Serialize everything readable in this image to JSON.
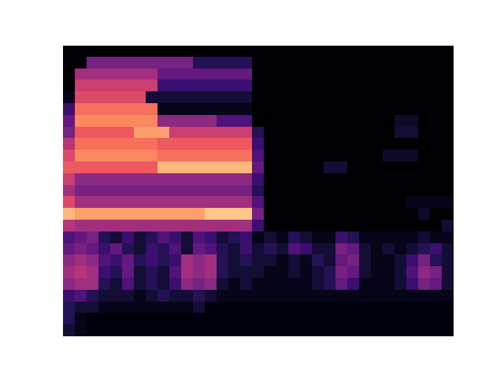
{
  "chart_data": {
    "type": "heatmap",
    "tick_labels": false,
    "color_range": [
      0,
      100
    ],
    "cells": [
      [
        0,
        0,
        0,
        0,
        0,
        0,
        0,
        0,
        0,
        0,
        0,
        0,
        0,
        0,
        0,
        0,
        0,
        0,
        0,
        0,
        0,
        0,
        0,
        0,
        0,
        0,
        0,
        0,
        0,
        0,
        0,
        0,
        0
      ],
      [
        0,
        0,
        35,
        35,
        35,
        35,
        35,
        35,
        35,
        35,
        35,
        15,
        15,
        15,
        15,
        15,
        0,
        0,
        0,
        0,
        0,
        0,
        0,
        0,
        0,
        0,
        0,
        0,
        0,
        0,
        0,
        0,
        0
      ],
      [
        0,
        45,
        45,
        45,
        45,
        45,
        45,
        45,
        30,
        30,
        30,
        30,
        30,
        30,
        30,
        30,
        0,
        0,
        0,
        0,
        0,
        0,
        0,
        0,
        0,
        0,
        0,
        0,
        0,
        0,
        0,
        0,
        0
      ],
      [
        0,
        55,
        55,
        55,
        55,
        55,
        55,
        55,
        20,
        20,
        20,
        20,
        20,
        20,
        20,
        20,
        0,
        0,
        0,
        0,
        0,
        0,
        0,
        0,
        0,
        0,
        0,
        0,
        0,
        0,
        0,
        0,
        0
      ],
      [
        5,
        60,
        60,
        60,
        60,
        60,
        60,
        10,
        10,
        10,
        10,
        10,
        10,
        10,
        10,
        10,
        0,
        0,
        0,
        0,
        0,
        0,
        0,
        0,
        0,
        0,
        0,
        0,
        0,
        0,
        0,
        0,
        0
      ],
      [
        20,
        70,
        70,
        70,
        70,
        70,
        70,
        70,
        5,
        5,
        5,
        5,
        5,
        5,
        5,
        5,
        0,
        0,
        0,
        0,
        0,
        0,
        0,
        0,
        0,
        0,
        0,
        0,
        0,
        0,
        0,
        0,
        0
      ],
      [
        30,
        75,
        75,
        75,
        75,
        75,
        75,
        75,
        40,
        40,
        40,
        40,
        40,
        25,
        25,
        25,
        0,
        0,
        0,
        0,
        0,
        0,
        0,
        0,
        0,
        0,
        0,
        0,
        8,
        8,
        0,
        0,
        0
      ],
      [
        35,
        65,
        65,
        65,
        65,
        65,
        80,
        80,
        80,
        55,
        55,
        55,
        55,
        55,
        55,
        55,
        15,
        0,
        0,
        0,
        0,
        0,
        0,
        0,
        0,
        0,
        0,
        0,
        10,
        10,
        0,
        0,
        0
      ],
      [
        50,
        70,
        70,
        70,
        70,
        70,
        70,
        70,
        65,
        65,
        65,
        65,
        65,
        65,
        65,
        65,
        20,
        0,
        0,
        0,
        0,
        0,
        0,
        0,
        0,
        0,
        0,
        0,
        0,
        0,
        0,
        0,
        0
      ],
      [
        60,
        75,
        75,
        75,
        75,
        75,
        75,
        75,
        70,
        70,
        70,
        70,
        70,
        70,
        70,
        70,
        25,
        0,
        0,
        0,
        0,
        0,
        0,
        0,
        0,
        0,
        0,
        8,
        8,
        8,
        0,
        0,
        0
      ],
      [
        65,
        65,
        65,
        65,
        65,
        65,
        65,
        65,
        85,
        85,
        85,
        85,
        85,
        85,
        85,
        85,
        30,
        0,
        0,
        0,
        0,
        0,
        10,
        10,
        0,
        0,
        0,
        0,
        0,
        0,
        0,
        0,
        0
      ],
      [
        55,
        40,
        40,
        40,
        40,
        40,
        40,
        40,
        40,
        40,
        40,
        40,
        40,
        40,
        40,
        40,
        20,
        0,
        0,
        0,
        0,
        0,
        0,
        0,
        0,
        0,
        0,
        0,
        0,
        0,
        0,
        0,
        0
      ],
      [
        45,
        35,
        35,
        35,
        35,
        35,
        35,
        35,
        35,
        35,
        35,
        35,
        35,
        35,
        35,
        35,
        15,
        0,
        0,
        0,
        0,
        0,
        0,
        0,
        0,
        0,
        0,
        0,
        0,
        0,
        0,
        0,
        0
      ],
      [
        60,
        45,
        45,
        45,
        45,
        45,
        45,
        45,
        45,
        45,
        45,
        45,
        45,
        45,
        45,
        45,
        25,
        0,
        0,
        0,
        0,
        0,
        0,
        0,
        0,
        0,
        0,
        0,
        0,
        5,
        5,
        5,
        5
      ],
      [
        85,
        80,
        80,
        80,
        80,
        80,
        80,
        80,
        80,
        80,
        80,
        80,
        88,
        88,
        88,
        88,
        35,
        0,
        0,
        0,
        0,
        0,
        0,
        0,
        0,
        0,
        0,
        0,
        0,
        0,
        8,
        0,
        0
      ],
      [
        50,
        45,
        45,
        45,
        45,
        45,
        45,
        45,
        45,
        45,
        45,
        45,
        45,
        45,
        45,
        45,
        20,
        0,
        0,
        0,
        0,
        0,
        0,
        0,
        0,
        0,
        0,
        0,
        0,
        0,
        0,
        0,
        10
      ],
      [
        25,
        30,
        35,
        15,
        10,
        20,
        10,
        15,
        25,
        20,
        10,
        25,
        20,
        10,
        15,
        20,
        5,
        10,
        5,
        15,
        10,
        5,
        5,
        20,
        15,
        5,
        5,
        5,
        5,
        5,
        10,
        5,
        5
      ],
      [
        30,
        35,
        30,
        20,
        30,
        15,
        10,
        20,
        15,
        25,
        10,
        30,
        25,
        15,
        10,
        20,
        10,
        15,
        10,
        25,
        20,
        10,
        10,
        35,
        30,
        10,
        5,
        10,
        5,
        10,
        15,
        20,
        10
      ],
      [
        40,
        45,
        40,
        25,
        20,
        30,
        15,
        20,
        15,
        20,
        45,
        40,
        45,
        15,
        10,
        15,
        10,
        10,
        5,
        10,
        5,
        15,
        10,
        30,
        35,
        10,
        5,
        5,
        10,
        20,
        35,
        15,
        10
      ],
      [
        45,
        50,
        45,
        20,
        15,
        30,
        10,
        15,
        10,
        25,
        45,
        40,
        45,
        15,
        10,
        10,
        10,
        5,
        5,
        10,
        5,
        10,
        15,
        35,
        30,
        10,
        5,
        5,
        10,
        25,
        40,
        35,
        10
      ],
      [
        40,
        45,
        45,
        15,
        10,
        25,
        10,
        15,
        10,
        20,
        40,
        35,
        40,
        10,
        5,
        10,
        5,
        5,
        5,
        5,
        5,
        10,
        15,
        30,
        20,
        5,
        5,
        5,
        10,
        20,
        35,
        30,
        10
      ],
      [
        20,
        25,
        15,
        10,
        10,
        10,
        5,
        10,
        15,
        10,
        10,
        15,
        10,
        5,
        5,
        5,
        5,
        5,
        5,
        5,
        5,
        5,
        5,
        5,
        5,
        5,
        5,
        5,
        5,
        5,
        5,
        5,
        5
      ],
      [
        15,
        10,
        10,
        5,
        5,
        5,
        5,
        5,
        5,
        5,
        5,
        10,
        3,
        3,
        3,
        3,
        3,
        3,
        3,
        3,
        3,
        3,
        3,
        3,
        3,
        3,
        3,
        3,
        3,
        3,
        3,
        3,
        3
      ],
      [
        15,
        5,
        2,
        2,
        2,
        2,
        2,
        2,
        2,
        2,
        2,
        2,
        2,
        2,
        2,
        2,
        2,
        2,
        2,
        2,
        2,
        2,
        2,
        2,
        2,
        2,
        2,
        2,
        2,
        2,
        2,
        2,
        2
      ],
      [
        10,
        5,
        2,
        2,
        2,
        2,
        2,
        2,
        2,
        2,
        2,
        2,
        2,
        2,
        2,
        2,
        2,
        2,
        2,
        2,
        2,
        2,
        2,
        2,
        2,
        2,
        2,
        2,
        2,
        2,
        2,
        2,
        2
      ]
    ]
  }
}
